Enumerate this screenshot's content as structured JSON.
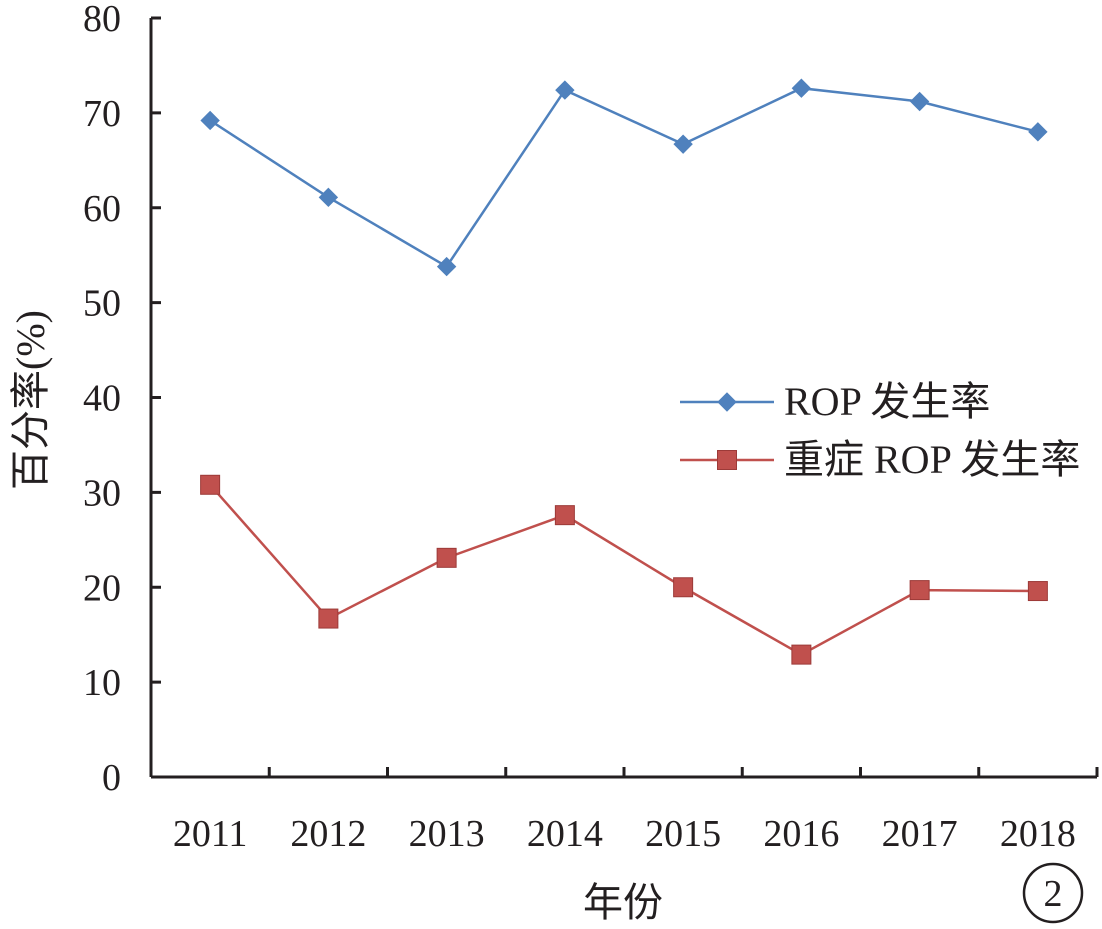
{
  "chart_data": {
    "type": "line",
    "categories": [
      "2011",
      "2012",
      "2013",
      "2014",
      "2015",
      "2016",
      "2017",
      "2018"
    ],
    "series": [
      {
        "name": "ROP 发生率",
        "values": [
          69.2,
          61.1,
          53.8,
          72.4,
          66.7,
          72.6,
          71.2,
          68.0
        ],
        "color": "#4f81bd",
        "marker": "diamond"
      },
      {
        "name": "重症 ROP 发生率",
        "values": [
          30.8,
          16.7,
          23.1,
          27.6,
          20.0,
          12.9,
          19.7,
          19.6
        ],
        "color": "#c0504d",
        "marker": "square"
      }
    ],
    "xlabel": "年份",
    "ylabel": "百分率(%)",
    "ylim": [
      0,
      80
    ],
    "yticks": [
      0,
      10,
      20,
      30,
      40,
      50,
      60,
      70,
      80
    ],
    "grid": false,
    "legend_position": "center-right"
  },
  "badge": "2"
}
